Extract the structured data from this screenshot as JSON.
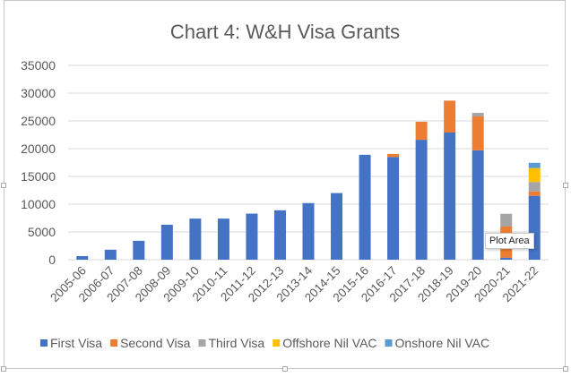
{
  "chart_data": {
    "type": "bar",
    "stacked": true,
    "title": "Chart 4: W&H Visa Grants",
    "xlabel": "",
    "ylabel": "",
    "ylim": [
      0,
      35000
    ],
    "yticks": [
      0,
      5000,
      10000,
      15000,
      20000,
      25000,
      30000,
      35000
    ],
    "grid": true,
    "legend_position": "bottom",
    "categories": [
      "2005-06",
      "2006-07",
      "2007-08",
      "2008-09",
      "2009-10",
      "2010-11",
      "2011-12",
      "2012-13",
      "2013-14",
      "2014-15",
      "2015-16",
      "2016-17",
      "2017-18",
      "2018-19",
      "2019-20",
      "2020-21",
      "2021-22"
    ],
    "series": [
      {
        "name": "First Visa",
        "color": "#4472C4",
        "values": [
          650,
          1800,
          3400,
          6300,
          7400,
          7400,
          8300,
          8900,
          10200,
          12000,
          18900,
          18500,
          21600,
          22900,
          19700,
          370,
          11500
        ]
      },
      {
        "name": "Second Visa",
        "color": "#ED7D31",
        "values": [
          0,
          0,
          0,
          0,
          0,
          0,
          0,
          0,
          0,
          0,
          0,
          550,
          3250,
          5750,
          6100,
          5600,
          800
        ]
      },
      {
        "name": "Third Visa",
        "color": "#A5A5A5",
        "values": [
          0,
          0,
          0,
          0,
          0,
          0,
          0,
          0,
          0,
          0,
          0,
          0,
          0,
          0,
          650,
          2300,
          1700
        ]
      },
      {
        "name": "Offshore Nil VAC",
        "color": "#FFC000",
        "values": [
          0,
          0,
          0,
          0,
          0,
          0,
          0,
          0,
          0,
          0,
          0,
          0,
          0,
          0,
          0,
          0,
          2500
        ]
      },
      {
        "name": "Onshore Nil VAC",
        "color": "#5B9BD5",
        "values": [
          0,
          0,
          0,
          0,
          0,
          0,
          0,
          0,
          0,
          0,
          0,
          0,
          0,
          0,
          0,
          0,
          950
        ]
      }
    ]
  },
  "tooltip": "Plot Area"
}
